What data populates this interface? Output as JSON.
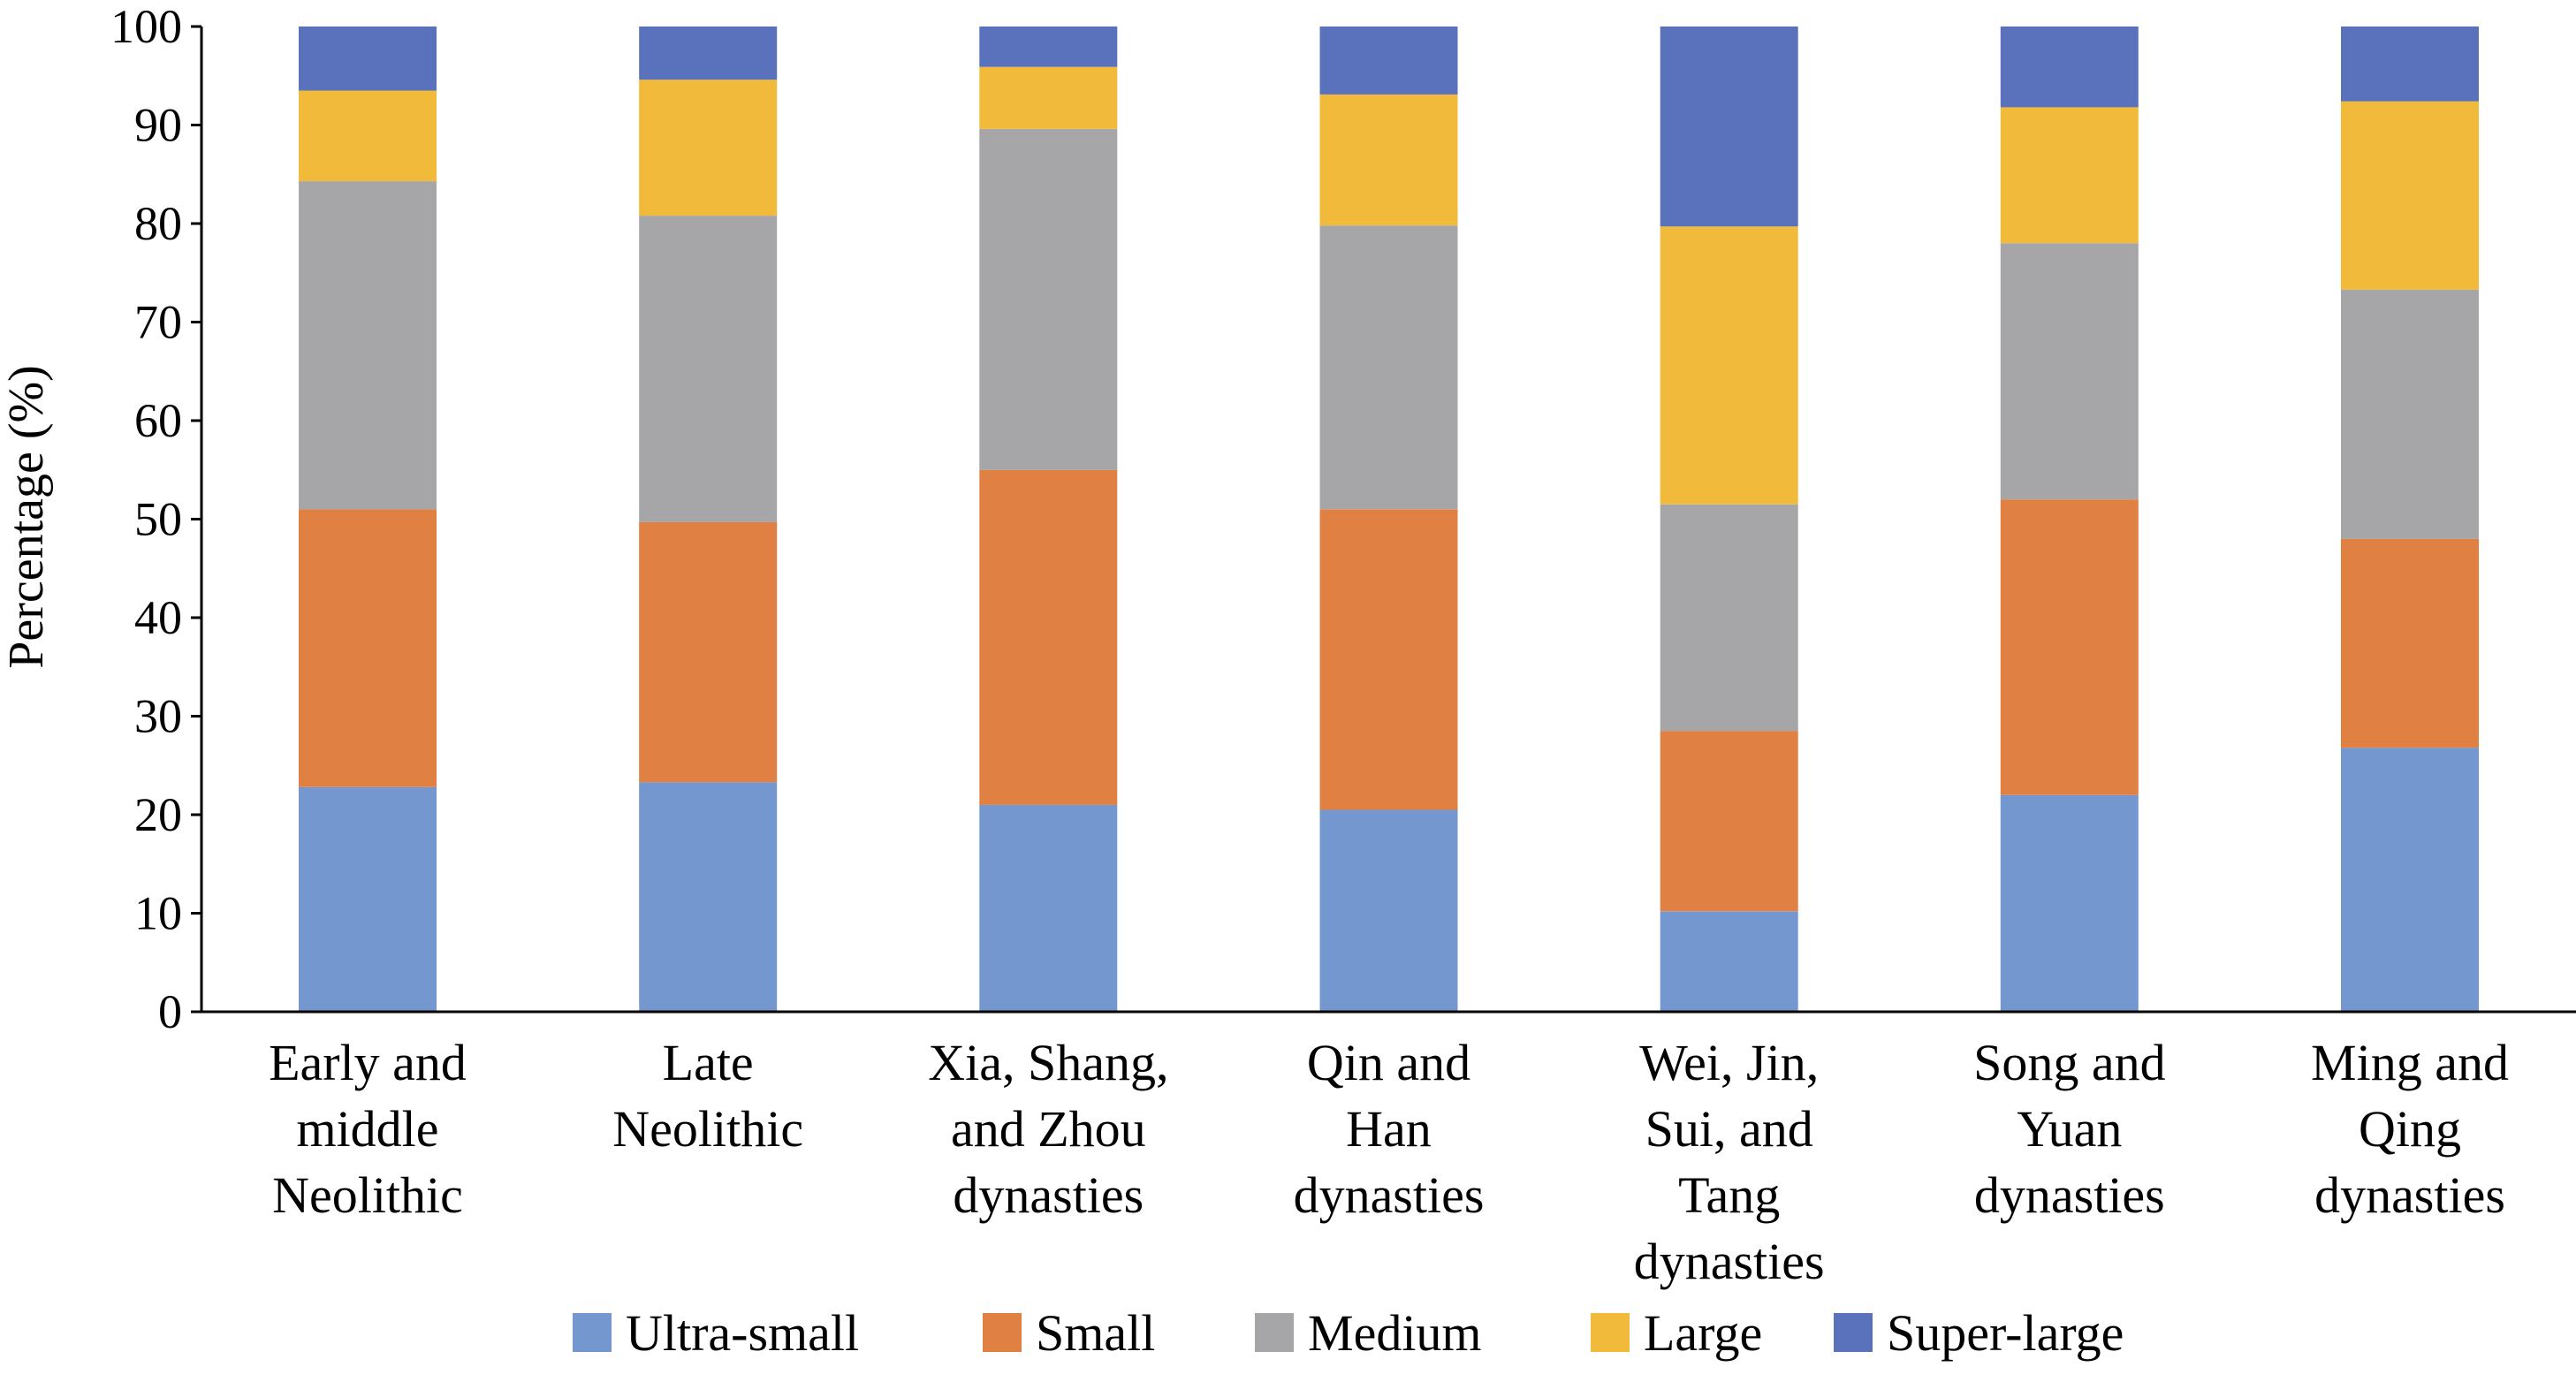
{
  "chart_data": {
    "type": "bar",
    "stacked": true,
    "title": "",
    "xlabel": "",
    "ylabel": "Percentage (%)",
    "ylim": [
      0,
      100
    ],
    "yticks": [
      0,
      10,
      20,
      30,
      40,
      50,
      60,
      70,
      80,
      90,
      100
    ],
    "grid": false,
    "legend_position": "bottom",
    "categories": [
      [
        "Early and",
        "middle",
        "Neolithic"
      ],
      [
        "Late",
        "Neolithic"
      ],
      [
        "Xia, Shang,",
        "and Zhou",
        "dynasties"
      ],
      [
        "Qin and",
        "Han",
        "dynasties"
      ],
      [
        "Wei, Jin,",
        "Sui, and",
        "Tang",
        "dynasties"
      ],
      [
        "Song and",
        "Yuan",
        "dynasties"
      ],
      [
        "Ming and",
        "Qing",
        "dynasties"
      ]
    ],
    "series": [
      {
        "name": "Ultra-small",
        "color": "#7597CF",
        "values": [
          22.8,
          23.3,
          21.0,
          20.5,
          10.2,
          22.0,
          26.8
        ]
      },
      {
        "name": "Small",
        "color": "#E08143",
        "values": [
          28.2,
          26.4,
          34.0,
          30.5,
          18.3,
          30.0,
          21.2
        ]
      },
      {
        "name": "Medium",
        "color": "#A6A5A8",
        "values": [
          33.3,
          31.1,
          34.6,
          28.8,
          23.0,
          26.0,
          25.3
        ]
      },
      {
        "name": "Large",
        "color": "#F1BA3A",
        "values": [
          9.2,
          13.8,
          6.3,
          13.3,
          28.2,
          13.8,
          19.1
        ]
      },
      {
        "name": "Super-large",
        "color": "#5A71BC",
        "values": [
          6.5,
          5.4,
          4.1,
          6.9,
          20.3,
          8.2,
          7.6
        ]
      }
    ]
  }
}
